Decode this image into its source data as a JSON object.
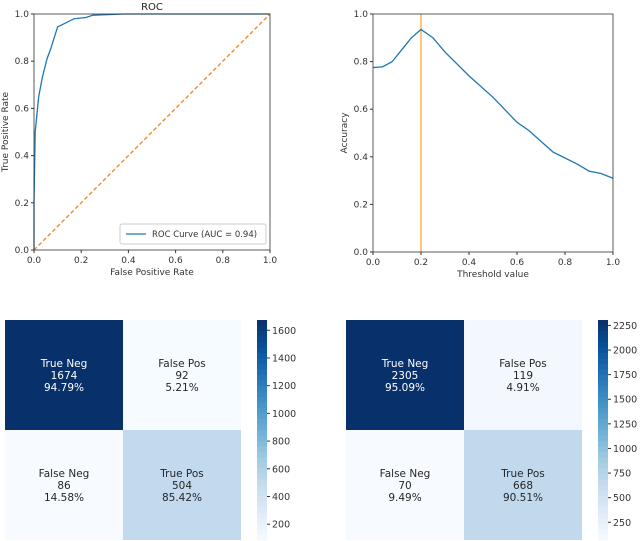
{
  "chart_data": [
    {
      "type": "line",
      "title": "ROC",
      "xlabel": "False Positive Rate",
      "ylabel": "True Positive Rate",
      "xlim": [
        0,
        1
      ],
      "ylim": [
        0,
        1
      ],
      "xticks": [
        "0.0",
        "0.2",
        "0.4",
        "0.6",
        "0.8",
        "1.0"
      ],
      "yticks": [
        "0.0",
        "0.2",
        "0.4",
        "0.6",
        "0.8",
        "1.0"
      ],
      "legend_position": "lower-right",
      "series": [
        {
          "name": "ROC Curve (AUC = 0.94)",
          "color": "#1f77b4",
          "x": [
            0,
            0,
            0.005,
            0.02,
            0.035,
            0.055,
            0.07,
            0.1,
            0.13,
            0.17,
            0.22,
            0.25,
            0.38,
            1
          ],
          "y": [
            0,
            0.2,
            0.5,
            0.65,
            0.73,
            0.81,
            0.85,
            0.945,
            0.96,
            0.98,
            0.985,
            0.995,
            1,
            1
          ]
        },
        {
          "color": "#ff7f0e",
          "style": "dashed",
          "x": [
            0,
            1
          ],
          "y": [
            0,
            1
          ]
        }
      ]
    },
    {
      "type": "line",
      "xlabel": "Threshold value",
      "ylabel": "Accuracy",
      "xlim": [
        0,
        1
      ],
      "ylim": [
        0,
        1
      ],
      "xticks": [
        "0.0",
        "0.2",
        "0.4",
        "0.6",
        "0.8",
        "1.0"
      ],
      "yticks": [
        "0.0",
        "0.2",
        "0.4",
        "0.6",
        "0.8",
        "1.0"
      ],
      "vline": {
        "x": 0.2,
        "color": "#ff9f1c"
      },
      "series": [
        {
          "color": "#1f77b4",
          "x": [
            0,
            0.04,
            0.08,
            0.12,
            0.16,
            0.2,
            0.25,
            0.3,
            0.4,
            0.5,
            0.6,
            0.65,
            0.7,
            0.75,
            0.8,
            0.85,
            0.9,
            0.95,
            1
          ],
          "y": [
            0.775,
            0.778,
            0.8,
            0.85,
            0.9,
            0.935,
            0.9,
            0.84,
            0.74,
            0.65,
            0.545,
            0.51,
            0.465,
            0.42,
            0.395,
            0.37,
            0.34,
            0.33,
            0.31
          ]
        }
      ]
    },
    {
      "type": "heatmap",
      "colormap": "Blues",
      "vrange": [
        86,
        1674
      ],
      "cells": [
        [
          {
            "label": "True Neg",
            "count": "1674",
            "pct": "94.79%",
            "value": 1674
          },
          {
            "label": "False Pos",
            "count": "92",
            "pct": "5.21%",
            "value": 92
          }
        ],
        [
          {
            "label": "False Neg",
            "count": "86",
            "pct": "14.58%",
            "value": 86
          },
          {
            "label": "True Pos",
            "count": "504",
            "pct": "85.42%",
            "value": 504
          }
        ]
      ],
      "colorbar_ticks": [
        200,
        400,
        600,
        800,
        1000,
        1200,
        1400,
        1600
      ]
    },
    {
      "type": "heatmap",
      "colormap": "Blues",
      "vrange": [
        70,
        2305
      ],
      "cells": [
        [
          {
            "label": "True Neg",
            "count": "2305",
            "pct": "95.09%",
            "value": 2305
          },
          {
            "label": "False Pos",
            "count": "119",
            "pct": "4.91%",
            "value": 119
          }
        ],
        [
          {
            "label": "False Neg",
            "count": "70",
            "pct": "9.49%",
            "value": 70
          },
          {
            "label": "True Pos",
            "count": "668",
            "pct": "90.51%",
            "value": 668
          }
        ]
      ],
      "colorbar_ticks": [
        250,
        500,
        750,
        1000,
        1250,
        1500,
        1750,
        2000,
        2250
      ]
    }
  ]
}
